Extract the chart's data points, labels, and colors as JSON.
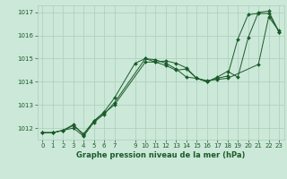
{
  "title": "Graphe pression niveau de la mer (hPa)",
  "background_color": "#cce8d8",
  "grid_color": "#aacfba",
  "line_color": "#1a5c2a",
  "marker_color": "#1a5c2a",
  "ylim": [
    1011.5,
    1017.3
  ],
  "yticks": [
    1012,
    1013,
    1014,
    1015,
    1016,
    1017
  ],
  "xticks": [
    0,
    1,
    2,
    3,
    4,
    5,
    6,
    7,
    9,
    10,
    11,
    12,
    13,
    14,
    15,
    16,
    17,
    18,
    19,
    20,
    21,
    22,
    23
  ],
  "xlim": [
    -0.5,
    23.5
  ],
  "lines": [
    {
      "x": [
        0,
        1,
        2,
        3,
        4,
        5,
        6,
        7,
        10,
        11,
        12,
        13,
        14,
        15,
        16,
        17,
        18,
        21,
        22,
        23
      ],
      "y": [
        1011.8,
        1011.8,
        1011.9,
        1012.0,
        1011.65,
        1012.25,
        1012.6,
        1013.1,
        1015.0,
        1014.85,
        1014.7,
        1014.5,
        1014.55,
        1014.15,
        1014.05,
        1014.1,
        1014.15,
        1014.75,
        1016.8,
        1016.2
      ]
    },
    {
      "x": [
        0,
        1,
        2,
        3,
        4,
        5,
        6,
        7,
        10,
        11,
        12,
        13,
        14,
        15,
        16,
        17,
        18,
        19,
        20,
        21,
        22,
        23
      ],
      "y": [
        1011.8,
        1011.8,
        1011.9,
        1012.1,
        1011.75,
        1012.3,
        1012.65,
        1013.0,
        1014.85,
        1014.85,
        1014.9,
        1014.8,
        1014.6,
        1014.15,
        1014.0,
        1014.15,
        1014.25,
        1015.85,
        1016.9,
        1016.95,
        1016.95,
        1016.15
      ]
    },
    {
      "x": [
        0,
        1,
        2,
        3,
        4,
        5,
        6,
        7,
        9,
        10,
        11,
        12,
        13,
        14,
        15,
        16,
        17,
        18,
        19,
        20,
        21,
        22,
        23
      ],
      "y": [
        1011.8,
        1011.8,
        1011.9,
        1012.15,
        1011.7,
        1012.3,
        1012.7,
        1013.3,
        1014.8,
        1015.0,
        1014.95,
        1014.8,
        1014.55,
        1014.2,
        1014.15,
        1014.0,
        1014.2,
        1014.45,
        1014.2,
        1015.9,
        1017.0,
        1017.05,
        1016.15
      ]
    }
  ],
  "tick_fontsize": 5,
  "xlabel_fontsize": 6,
  "xlabel_fontweight": "bold"
}
